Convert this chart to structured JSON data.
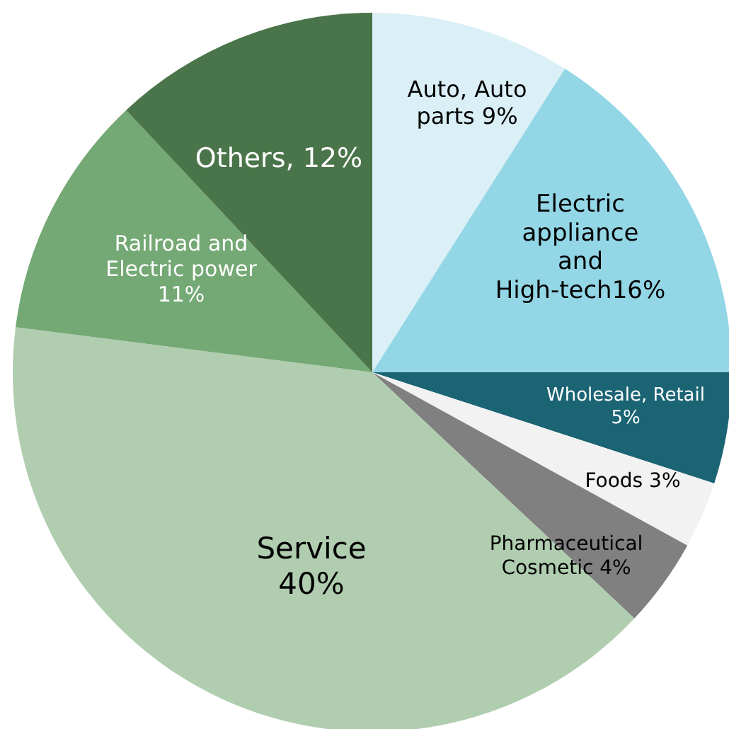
{
  "chart_data": {
    "type": "pie",
    "categories": [
      "Auto, Auto parts",
      "Electric appliance and High-tech",
      "Wholesale, Retail",
      "Foods",
      "Pharmaceutical Cosmetic",
      "Service",
      "Railroad and Electric power",
      "Others"
    ],
    "values": [
      9,
      16,
      5,
      3,
      4,
      40,
      11,
      12
    ],
    "colors": [
      "#daf0f6",
      "#93d6e6",
      "#1b6474",
      "#f2f2f2",
      "#808080",
      "#b0cdb0",
      "#74a874",
      "#4a7449"
    ],
    "value_labels": [
      "9%",
      "16%",
      "5%",
      "3%",
      "4%",
      "40%",
      "11%",
      "12%"
    ]
  }
}
